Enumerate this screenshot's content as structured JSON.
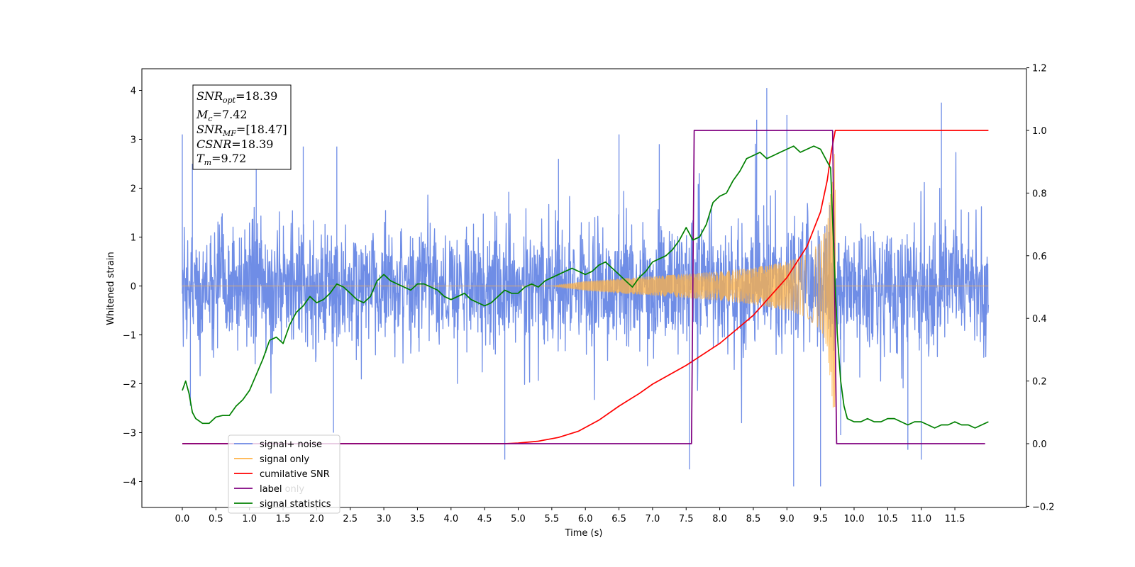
{
  "chart_data": {
    "type": "line",
    "xlabel": "Time (s)",
    "ylabel": "Whitened strain",
    "xlim": [
      -0.6,
      12.6
    ],
    "ylim": [
      -4.5,
      4.4
    ],
    "y2lim": [
      -0.2,
      1.2
    ],
    "x_ticks": [
      "0.0",
      "0.5",
      "1.0",
      "1.5",
      "2.0",
      "2.5",
      "3.0",
      "3.5",
      "4.0",
      "4.5",
      "5.0",
      "5.5",
      "6.0",
      "6.5",
      "7.0",
      "7.5",
      "8.0",
      "8.5",
      "9.0",
      "9.5",
      "10.0",
      "10.5",
      "11.0",
      "11.5"
    ],
    "y_ticks": [
      "4",
      "3",
      "2",
      "1",
      "0",
      "−1",
      "−2",
      "−3",
      "−4"
    ],
    "y2_ticks": [
      "1.2",
      "1.0",
      "0.8",
      "0.6",
      "0.4",
      "0.2",
      "0.0",
      "−0.2"
    ],
    "annotation": {
      "lines": [
        {
          "main": "SNR",
          "sub": "opt",
          "rest": "=18.39"
        },
        {
          "main": "M",
          "sub": "c",
          "rest": "=7.42"
        },
        {
          "main": "SNR",
          "sub": "MF",
          "rest": "=[18.47]"
        },
        {
          "main": "CSNR",
          "sub": "",
          "rest": "=18.39"
        },
        {
          "main": "T",
          "sub": "m",
          "rest": "=9.72"
        }
      ]
    },
    "legend": {
      "position": "lower-left",
      "entries": [
        {
          "label": "signal+ noise",
          "color": "#6f8de6"
        },
        {
          "label": "signal only",
          "color": "#ffb347"
        },
        {
          "label": "cumilative SNR",
          "color": "#ff0000"
        },
        {
          "label": "label",
          "color": "#800080"
        },
        {
          "label": "signal statistics",
          "color": "#008000"
        }
      ],
      "hidden_text": "label only"
    },
    "series": [
      {
        "name": "signal+ noise",
        "axis": "left",
        "color": "#6f8de6",
        "x_range": [
          0.0,
          12.0
        ],
        "noise_amplitude_typical": 1.2,
        "peaks": [
          {
            "x": 0.0,
            "y": 3.1
          },
          {
            "x": 0.12,
            "y": -2.45
          },
          {
            "x": 0.15,
            "y": 2.5
          },
          {
            "x": 1.1,
            "y": 2.95
          },
          {
            "x": 1.8,
            "y": 2.85
          },
          {
            "x": 2.25,
            "y": -3.0
          },
          {
            "x": 2.3,
            "y": 2.85
          },
          {
            "x": 4.8,
            "y": -3.55
          },
          {
            "x": 5.6,
            "y": 2.6
          },
          {
            "x": 6.5,
            "y": 3.1
          },
          {
            "x": 7.1,
            "y": 2.9
          },
          {
            "x": 7.55,
            "y": -3.75
          },
          {
            "x": 8.7,
            "y": 4.05
          },
          {
            "x": 8.55,
            "y": 3.4
          },
          {
            "x": 9.0,
            "y": 3.5
          },
          {
            "x": 9.1,
            "y": -4.1
          },
          {
            "x": 9.5,
            "y": -4.1
          },
          {
            "x": 9.8,
            "y": -3.05
          },
          {
            "x": 11.0,
            "y": -3.55
          },
          {
            "x": 11.3,
            "y": 3.75
          },
          {
            "x": 10.8,
            "y": -3.35
          }
        ]
      },
      {
        "name": "signal only",
        "axis": "left",
        "color": "#ffb347",
        "envelope": [
          {
            "x": 5.5,
            "a": 0.0
          },
          {
            "x": 6.0,
            "a": 0.1
          },
          {
            "x": 7.0,
            "a": 0.2
          },
          {
            "x": 7.5,
            "a": 0.25
          },
          {
            "x": 8.0,
            "a": 0.3
          },
          {
            "x": 8.5,
            "a": 0.38
          },
          {
            "x": 9.0,
            "a": 0.5
          },
          {
            "x": 9.3,
            "a": 0.65
          },
          {
            "x": 9.5,
            "a": 0.9
          },
          {
            "x": 9.6,
            "a": 1.3
          },
          {
            "x": 9.7,
            "a": 2.7
          }
        ],
        "x_end": 9.72
      },
      {
        "name": "cumilative SNR",
        "axis": "right",
        "color": "#ff0000",
        "x": [
          0.0,
          4.8,
          5.0,
          5.3,
          5.6,
          5.9,
          6.2,
          6.5,
          6.8,
          7.0,
          7.5,
          8.0,
          8.5,
          9.0,
          9.3,
          9.5,
          9.6,
          9.66,
          9.72,
          12.0
        ],
        "y": [
          0.0,
          0.0,
          0.002,
          0.008,
          0.02,
          0.04,
          0.075,
          0.12,
          0.16,
          0.19,
          0.25,
          0.32,
          0.41,
          0.53,
          0.63,
          0.74,
          0.84,
          0.93,
          1.0,
          1.0
        ]
      },
      {
        "name": "label",
        "axis": "right",
        "color": "#800080",
        "x": [
          0.0,
          7.58,
          7.62,
          9.68,
          9.74,
          11.95
        ],
        "y": [
          0.0,
          0.0,
          1.0,
          1.0,
          0.0,
          0.0
        ]
      },
      {
        "name": "signal statistics",
        "axis": "right",
        "color": "#008000",
        "x": [
          0.0,
          0.05,
          0.1,
          0.15,
          0.2,
          0.3,
          0.4,
          0.5,
          0.6,
          0.7,
          0.8,
          0.9,
          1.0,
          1.1,
          1.2,
          1.3,
          1.4,
          1.5,
          1.6,
          1.7,
          1.8,
          1.9,
          2.0,
          2.1,
          2.2,
          2.3,
          2.4,
          2.5,
          2.6,
          2.7,
          2.8,
          2.9,
          3.0,
          3.1,
          3.2,
          3.3,
          3.4,
          3.5,
          3.6,
          3.7,
          3.8,
          3.9,
          4.0,
          4.1,
          4.2,
          4.3,
          4.4,
          4.5,
          4.6,
          4.7,
          4.8,
          4.9,
          5.0,
          5.1,
          5.2,
          5.3,
          5.4,
          5.5,
          5.6,
          5.7,
          5.8,
          5.9,
          6.0,
          6.1,
          6.2,
          6.3,
          6.4,
          6.5,
          6.6,
          6.7,
          6.8,
          6.9,
          7.0,
          7.1,
          7.2,
          7.3,
          7.4,
          7.5,
          7.6,
          7.7,
          7.8,
          7.9,
          8.0,
          8.1,
          8.2,
          8.3,
          8.4,
          8.5,
          8.6,
          8.7,
          8.8,
          8.9,
          9.0,
          9.1,
          9.2,
          9.3,
          9.4,
          9.5,
          9.6,
          9.65,
          9.7,
          9.75,
          9.8,
          9.85,
          9.9,
          10.0,
          10.1,
          10.2,
          10.3,
          10.4,
          10.5,
          10.6,
          10.7,
          10.8,
          10.9,
          11.0,
          11.1,
          11.2,
          11.3,
          11.4,
          11.5,
          11.6,
          11.7,
          11.8,
          11.9,
          12.0
        ],
        "y": [
          0.17,
          0.2,
          0.16,
          0.1,
          0.08,
          0.065,
          0.065,
          0.085,
          0.09,
          0.09,
          0.12,
          0.14,
          0.17,
          0.22,
          0.27,
          0.33,
          0.34,
          0.32,
          0.38,
          0.42,
          0.44,
          0.47,
          0.45,
          0.46,
          0.48,
          0.51,
          0.5,
          0.48,
          0.46,
          0.45,
          0.47,
          0.52,
          0.54,
          0.52,
          0.51,
          0.5,
          0.49,
          0.51,
          0.51,
          0.5,
          0.49,
          0.47,
          0.46,
          0.47,
          0.48,
          0.46,
          0.45,
          0.44,
          0.45,
          0.47,
          0.49,
          0.48,
          0.48,
          0.5,
          0.51,
          0.5,
          0.52,
          0.53,
          0.54,
          0.55,
          0.56,
          0.55,
          0.54,
          0.55,
          0.57,
          0.58,
          0.56,
          0.54,
          0.52,
          0.5,
          0.53,
          0.55,
          0.58,
          0.59,
          0.6,
          0.62,
          0.65,
          0.69,
          0.65,
          0.66,
          0.7,
          0.77,
          0.79,
          0.8,
          0.84,
          0.87,
          0.91,
          0.92,
          0.93,
          0.91,
          0.92,
          0.93,
          0.94,
          0.95,
          0.93,
          0.94,
          0.95,
          0.94,
          0.9,
          0.88,
          0.6,
          0.35,
          0.2,
          0.12,
          0.08,
          0.07,
          0.07,
          0.08,
          0.07,
          0.07,
          0.08,
          0.08,
          0.07,
          0.06,
          0.07,
          0.07,
          0.06,
          0.05,
          0.06,
          0.06,
          0.07,
          0.06,
          0.06,
          0.05,
          0.06,
          0.07
        ]
      }
    ]
  }
}
